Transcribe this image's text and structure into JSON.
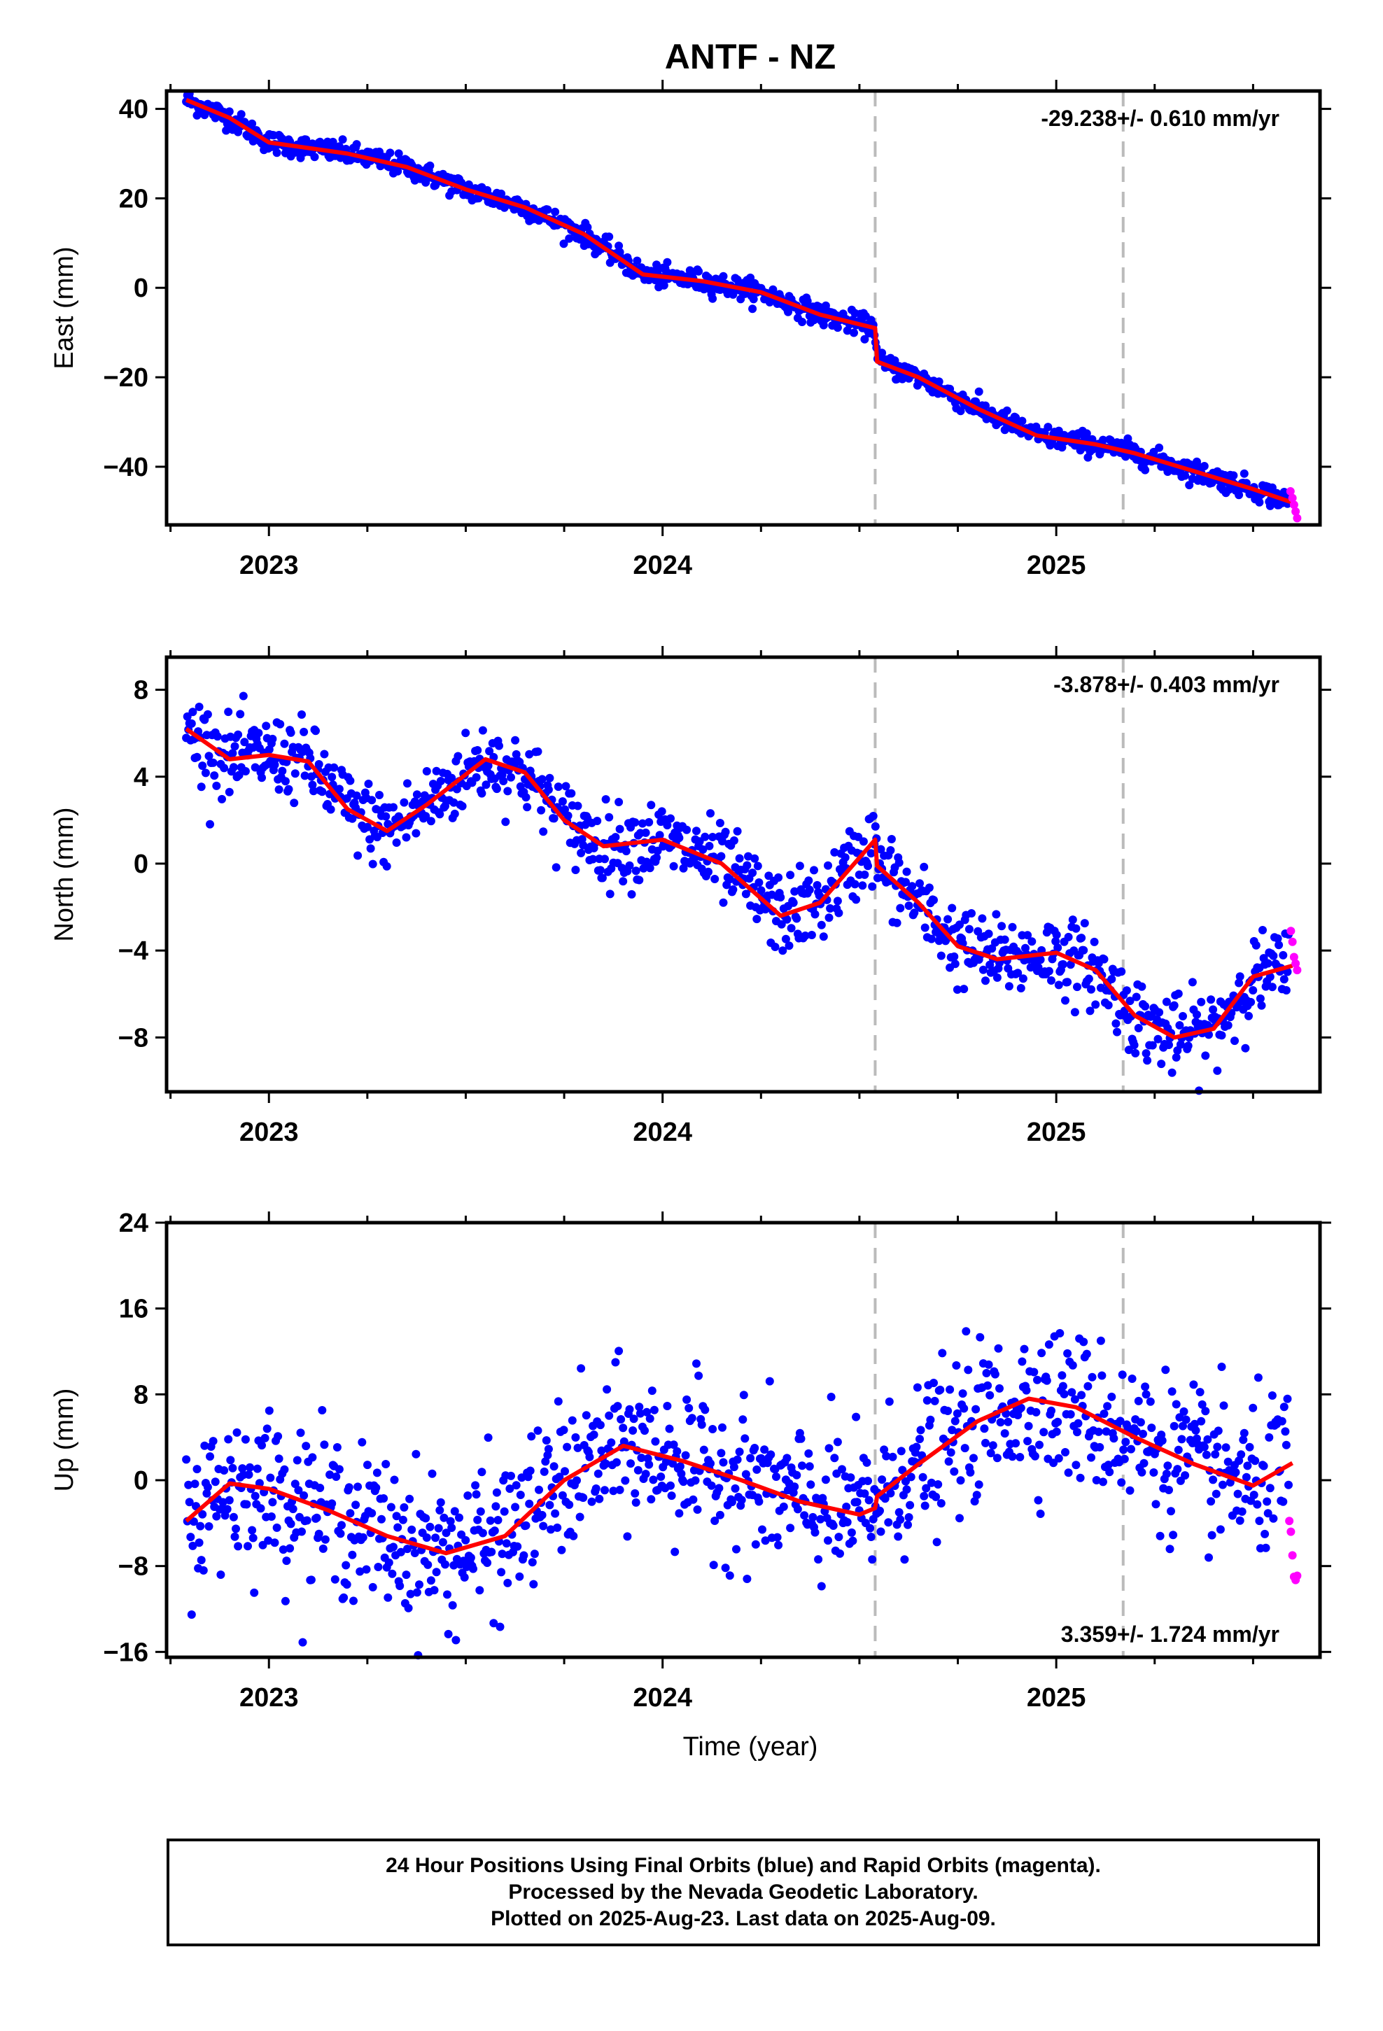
{
  "chart_data": {
    "title": "ANTF - NZ",
    "type": "scatter",
    "xlabel": "Time (year)",
    "xlim": [
      2022.74,
      2025.67
    ],
    "x_ticks": [
      2023,
      2024,
      2025
    ],
    "x_tick_labels": [
      "2023",
      "2024",
      "2025"
    ],
    "offset_lines": [
      2024.54,
      2025.17
    ],
    "colors": {
      "final": "#0000ff",
      "rapid": "#ff00ff",
      "model": "#ff0000",
      "offset": "#bbbbbb"
    },
    "series_legend": [
      "24 Hour Positions Using Final Orbits (blue)",
      "Rapid Orbits (magenta)",
      "model fit (red)"
    ],
    "panels": [
      {
        "ylabel": "East (mm)",
        "ylim": [
          -53,
          44
        ],
        "y_ticks": [
          40,
          20,
          0,
          -20,
          -40
        ],
        "y_tick_labels": [
          "40",
          "20",
          "0",
          "−20",
          "−40"
        ],
        "rate": "-29.238+/- 0.610 mm/yr",
        "rate_position": "top-right",
        "noise_sd": 1.2,
        "fit": [
          [
            2022.79,
            42.0
          ],
          [
            2022.9,
            38.0
          ],
          [
            2023.0,
            32.5
          ],
          [
            2023.2,
            30.0
          ],
          [
            2023.35,
            27.0
          ],
          [
            2023.5,
            22.0
          ],
          [
            2023.65,
            18.0
          ],
          [
            2023.8,
            12.0
          ],
          [
            2023.95,
            3.0
          ],
          [
            2024.1,
            1.5
          ],
          [
            2024.25,
            -1.0
          ],
          [
            2024.4,
            -6.0
          ],
          [
            2024.54,
            -9.0
          ],
          [
            2024.545,
            -16.5
          ],
          [
            2024.65,
            -20.0
          ],
          [
            2024.8,
            -27.0
          ],
          [
            2024.95,
            -33.0
          ],
          [
            2025.1,
            -35.0
          ],
          [
            2025.2,
            -37.0
          ],
          [
            2025.35,
            -41.0
          ],
          [
            2025.5,
            -45.0
          ],
          [
            2025.6,
            -48.0
          ]
        ],
        "rapid_x": [
          2025.595,
          2025.6,
          2025.604,
          2025.608,
          2025.612
        ],
        "rapid_y": [
          -45.5,
          -47.0,
          -48.5,
          -50.0,
          -51.5
        ]
      },
      {
        "ylabel": "North (mm)",
        "ylim": [
          -10.5,
          9.5
        ],
        "y_ticks": [
          8,
          4,
          0,
          -4,
          -8
        ],
        "y_tick_labels": [
          "8",
          "4",
          "0",
          "−4",
          "−8"
        ],
        "rate": "-3.878+/- 0.403 mm/yr",
        "rate_position": "top-right",
        "noise_sd": 0.9,
        "fit": [
          [
            2022.79,
            6.2
          ],
          [
            2022.9,
            4.8
          ],
          [
            2023.0,
            5.0
          ],
          [
            2023.1,
            4.7
          ],
          [
            2023.2,
            2.5
          ],
          [
            2023.3,
            1.5
          ],
          [
            2023.4,
            2.7
          ],
          [
            2023.55,
            4.8
          ],
          [
            2023.65,
            4.2
          ],
          [
            2023.75,
            2.0
          ],
          [
            2023.85,
            0.8
          ],
          [
            2024.0,
            1.1
          ],
          [
            2024.15,
            0.0
          ],
          [
            2024.3,
            -2.4
          ],
          [
            2024.4,
            -1.8
          ],
          [
            2024.54,
            1.1
          ],
          [
            2024.545,
            -0.1
          ],
          [
            2024.65,
            -1.8
          ],
          [
            2024.75,
            -3.8
          ],
          [
            2024.85,
            -4.4
          ],
          [
            2025.0,
            -4.1
          ],
          [
            2025.1,
            -4.9
          ],
          [
            2025.2,
            -7.0
          ],
          [
            2025.3,
            -8.0
          ],
          [
            2025.4,
            -7.6
          ],
          [
            2025.5,
            -5.2
          ],
          [
            2025.6,
            -4.7
          ]
        ],
        "rapid_x": [
          2025.596,
          2025.6,
          2025.604,
          2025.608,
          2025.612
        ],
        "rapid_y": [
          -3.1,
          -3.6,
          -4.3,
          -4.6,
          -4.9
        ]
      },
      {
        "ylabel": "Up (mm)",
        "ylim": [
          -16.5,
          24
        ],
        "y_ticks": [
          24,
          16,
          8,
          0,
          -8,
          -16
        ],
        "y_tick_labels": [
          "24",
          "16",
          "8",
          "0",
          "−8",
          "−16"
        ],
        "rate": "3.359+/- 1.724 mm/yr",
        "rate_position": "bottom-right",
        "noise_sd": 3.5,
        "fit": [
          [
            2022.79,
            -3.8
          ],
          [
            2022.9,
            -0.3
          ],
          [
            2023.0,
            -0.8
          ],
          [
            2023.15,
            -2.8
          ],
          [
            2023.3,
            -5.2
          ],
          [
            2023.45,
            -6.8
          ],
          [
            2023.6,
            -5.2
          ],
          [
            2023.75,
            0.0
          ],
          [
            2023.9,
            3.2
          ],
          [
            2024.05,
            1.8
          ],
          [
            2024.2,
            0.0
          ],
          [
            2024.35,
            -2.0
          ],
          [
            2024.5,
            -3.2
          ],
          [
            2024.54,
            -2.6
          ],
          [
            2024.545,
            -1.5
          ],
          [
            2024.65,
            1.5
          ],
          [
            2024.8,
            5.5
          ],
          [
            2024.93,
            7.6
          ],
          [
            2025.05,
            6.8
          ],
          [
            2025.2,
            4.0
          ],
          [
            2025.35,
            1.5
          ],
          [
            2025.5,
            -0.5
          ],
          [
            2025.6,
            1.6
          ]
        ],
        "rapid_x": [
          2025.592,
          2025.596,
          2025.6,
          2025.604,
          2025.608,
          2025.612
        ],
        "rapid_y": [
          -3.8,
          -4.8,
          -7.0,
          -9.0,
          -9.3,
          -8.9
        ]
      }
    ]
  },
  "footer": {
    "line1": "24 Hour Positions Using Final Orbits (blue) and Rapid Orbits (magenta).",
    "line2": "Processed by the Nevada Geodetic Laboratory.",
    "line3": "Plotted on 2025-Aug-23. Last data on 2025-Aug-09."
  }
}
